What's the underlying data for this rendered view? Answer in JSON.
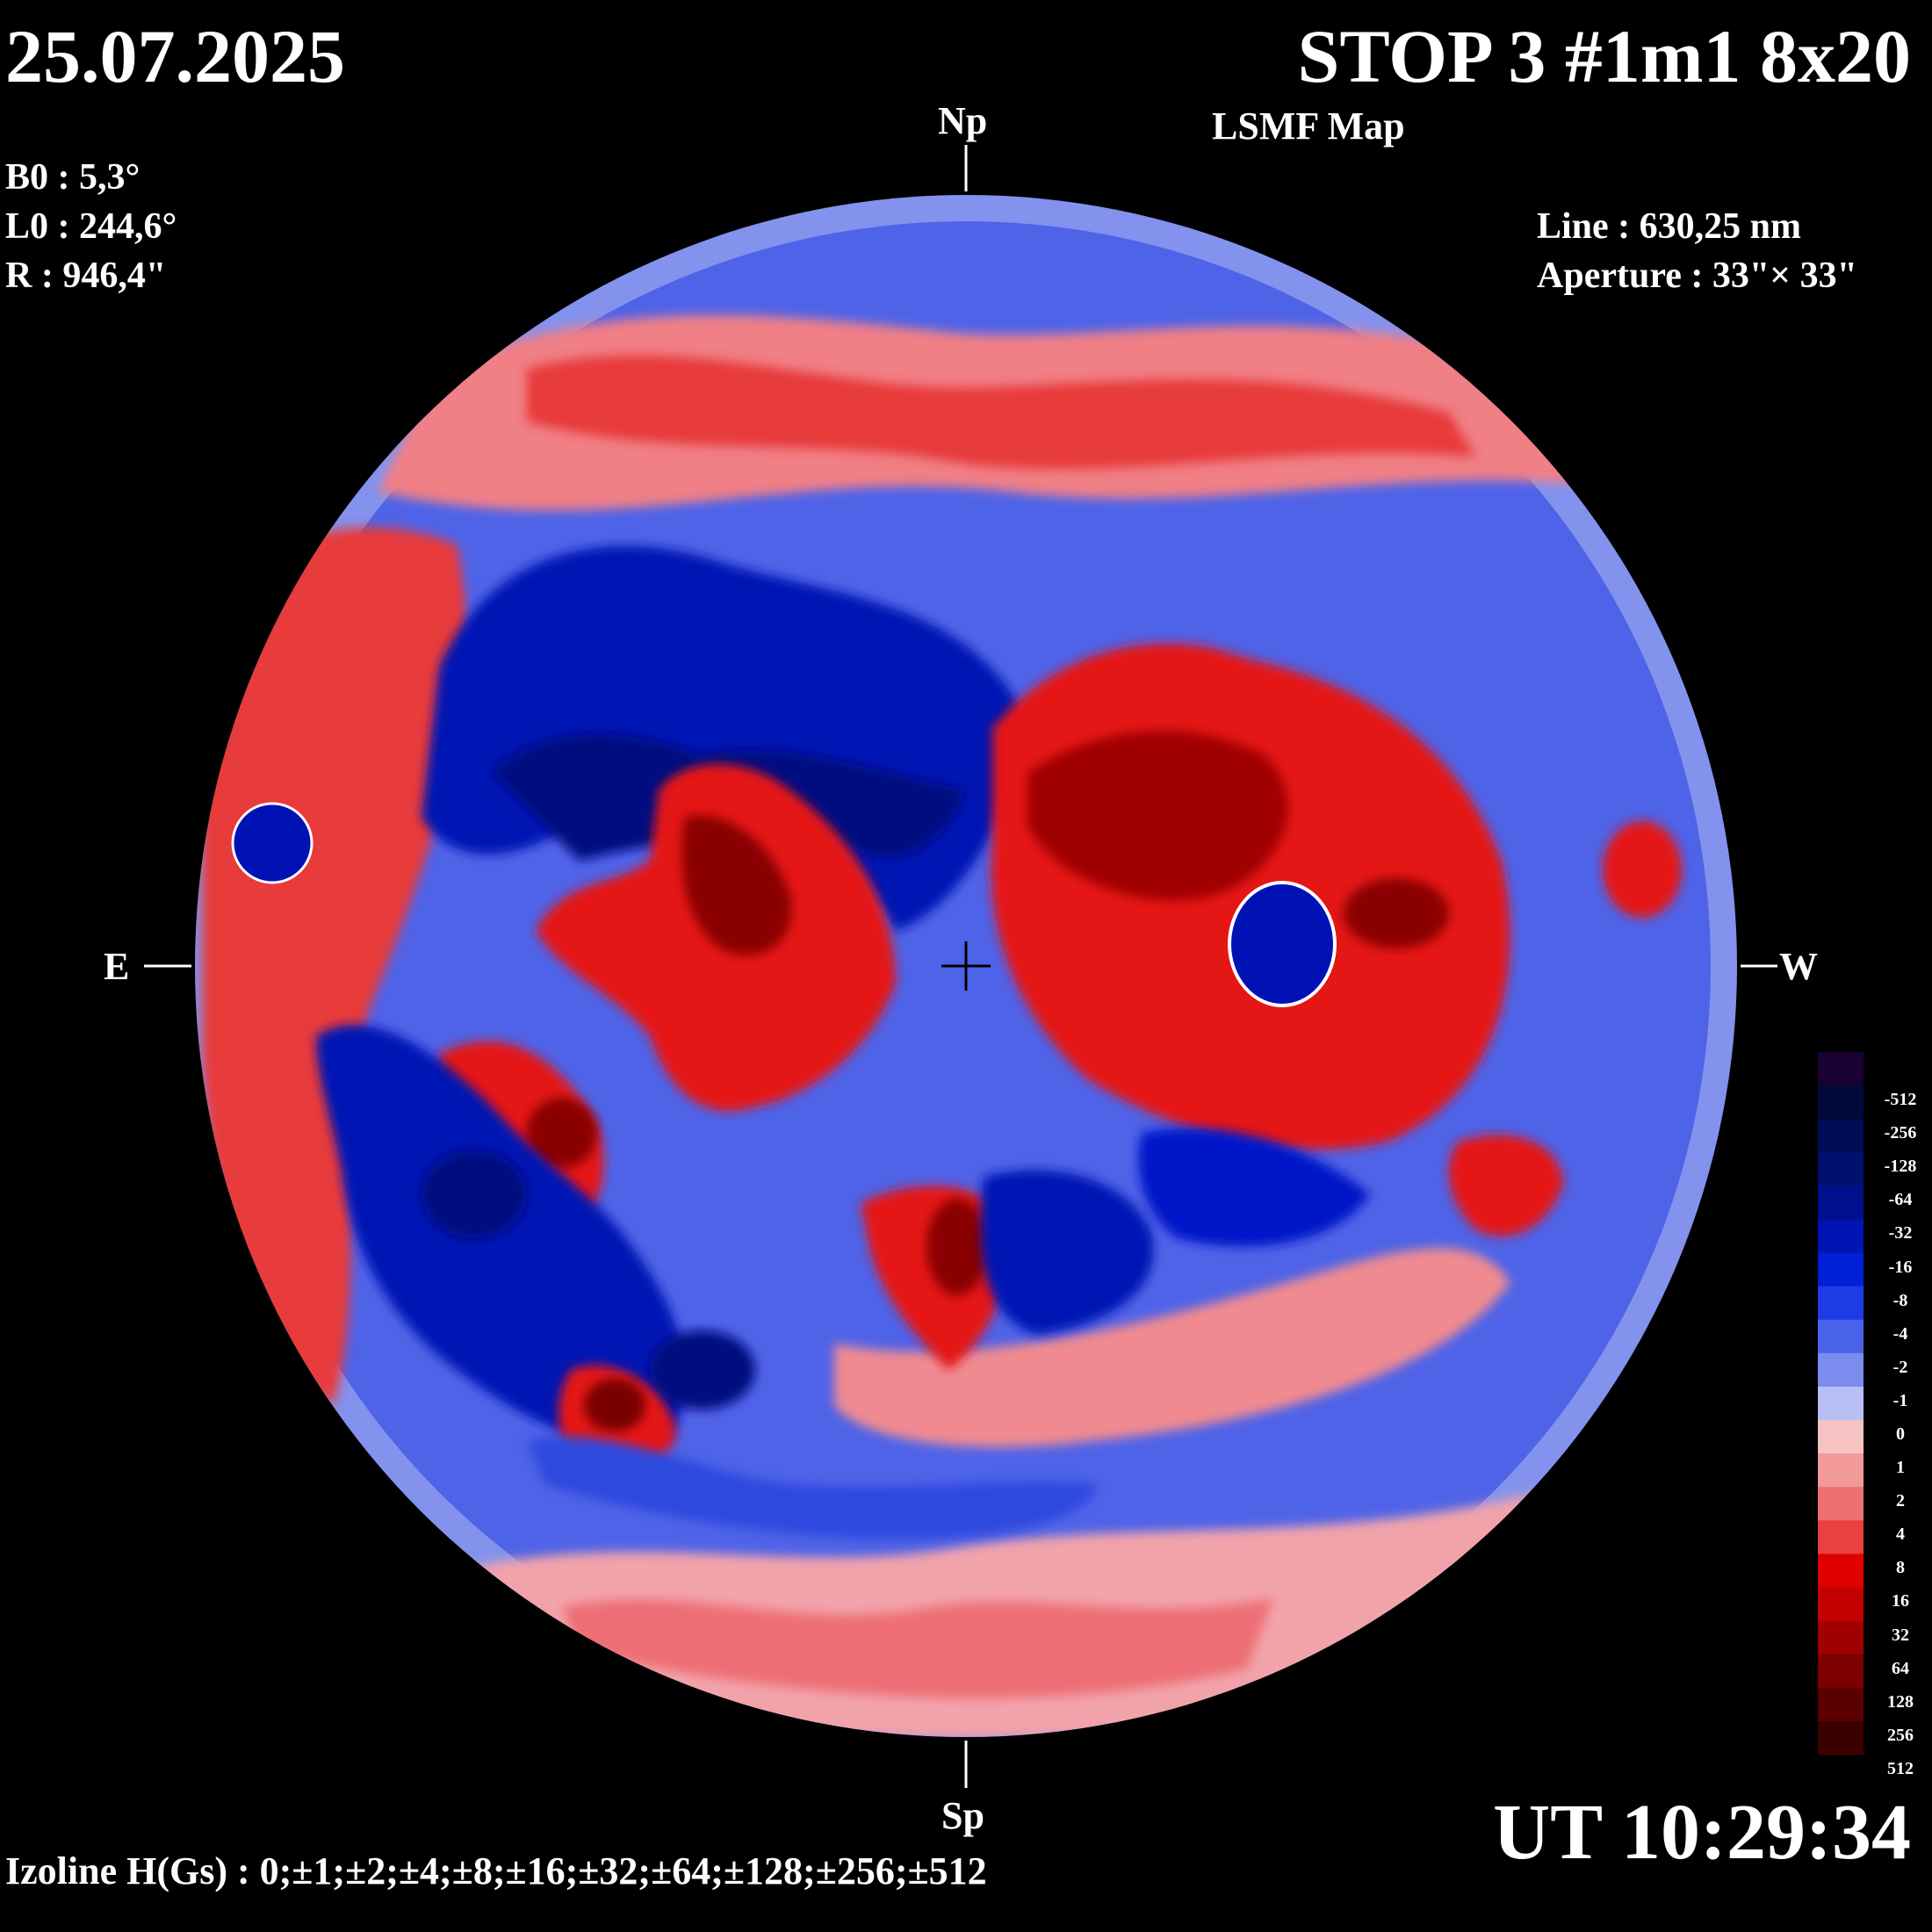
{
  "date": "25.07.2025",
  "title": "STOP 3 #1m1 8x20",
  "subtitle": "LSMF  Map",
  "params": {
    "b0": "B0 : 5,3°",
    "l0": "L0 : 244,6°",
    "r": "R  : 946,4\""
  },
  "info": {
    "line": "Line :  630,25 nm",
    "aperture": "Aperture : 33\"× 33\""
  },
  "compass": {
    "north": "Np",
    "south": "Sp",
    "east": "E",
    "west": "W"
  },
  "ut": "UT 10:29:34",
  "izoline": "Izoline H(Gs) : 0;±1;±2;±4;±8;±16;±32;±64;±128;±256;±512",
  "colorbar": {
    "labels": [
      "-512",
      "-256",
      "-128",
      "-64",
      "-32",
      "-16",
      "-8",
      "-4",
      "-2",
      "-1",
      "0",
      "1",
      "2",
      "4",
      "8",
      "16",
      "32",
      "64",
      "128",
      "256",
      "512"
    ],
    "colors": [
      "#1a0033",
      "#000a3a",
      "#000c55",
      "#001070",
      "#000f8c",
      "#0014b4",
      "#0020d8",
      "#1f3be6",
      "#4a62ea",
      "#7a8cee",
      "#b7bff4",
      "#f6c3c3",
      "#f29a9a",
      "#ee7070",
      "#ea4040",
      "#e00000",
      "#c40000",
      "#a00000",
      "#7c0000",
      "#5a0000",
      "#3a0000"
    ]
  },
  "map": {
    "disk_background": "#5468e6",
    "positive_color": "#e51414",
    "negative_color": "#0010b8"
  }
}
